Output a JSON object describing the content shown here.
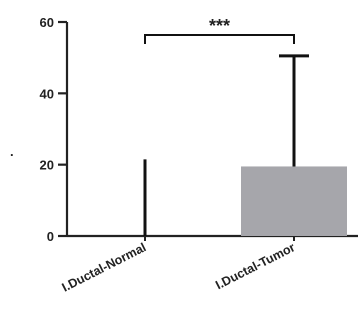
{
  "chart_data": {
    "type": "bar",
    "categories": [
      "I.Ductal-Normal",
      "I.Ductal-Tumor"
    ],
    "values": [
      0,
      19.5
    ],
    "error_upper": [
      21.5,
      50.5
    ],
    "ylim": [
      0,
      60
    ],
    "yticks": [
      0,
      20,
      40,
      60
    ],
    "ylabel": ".",
    "xlabel": "",
    "title": "",
    "significance": {
      "between": [
        0,
        1
      ],
      "label": "***"
    },
    "bar_color": "#a6a6ab",
    "grid": false,
    "legend": "none"
  }
}
